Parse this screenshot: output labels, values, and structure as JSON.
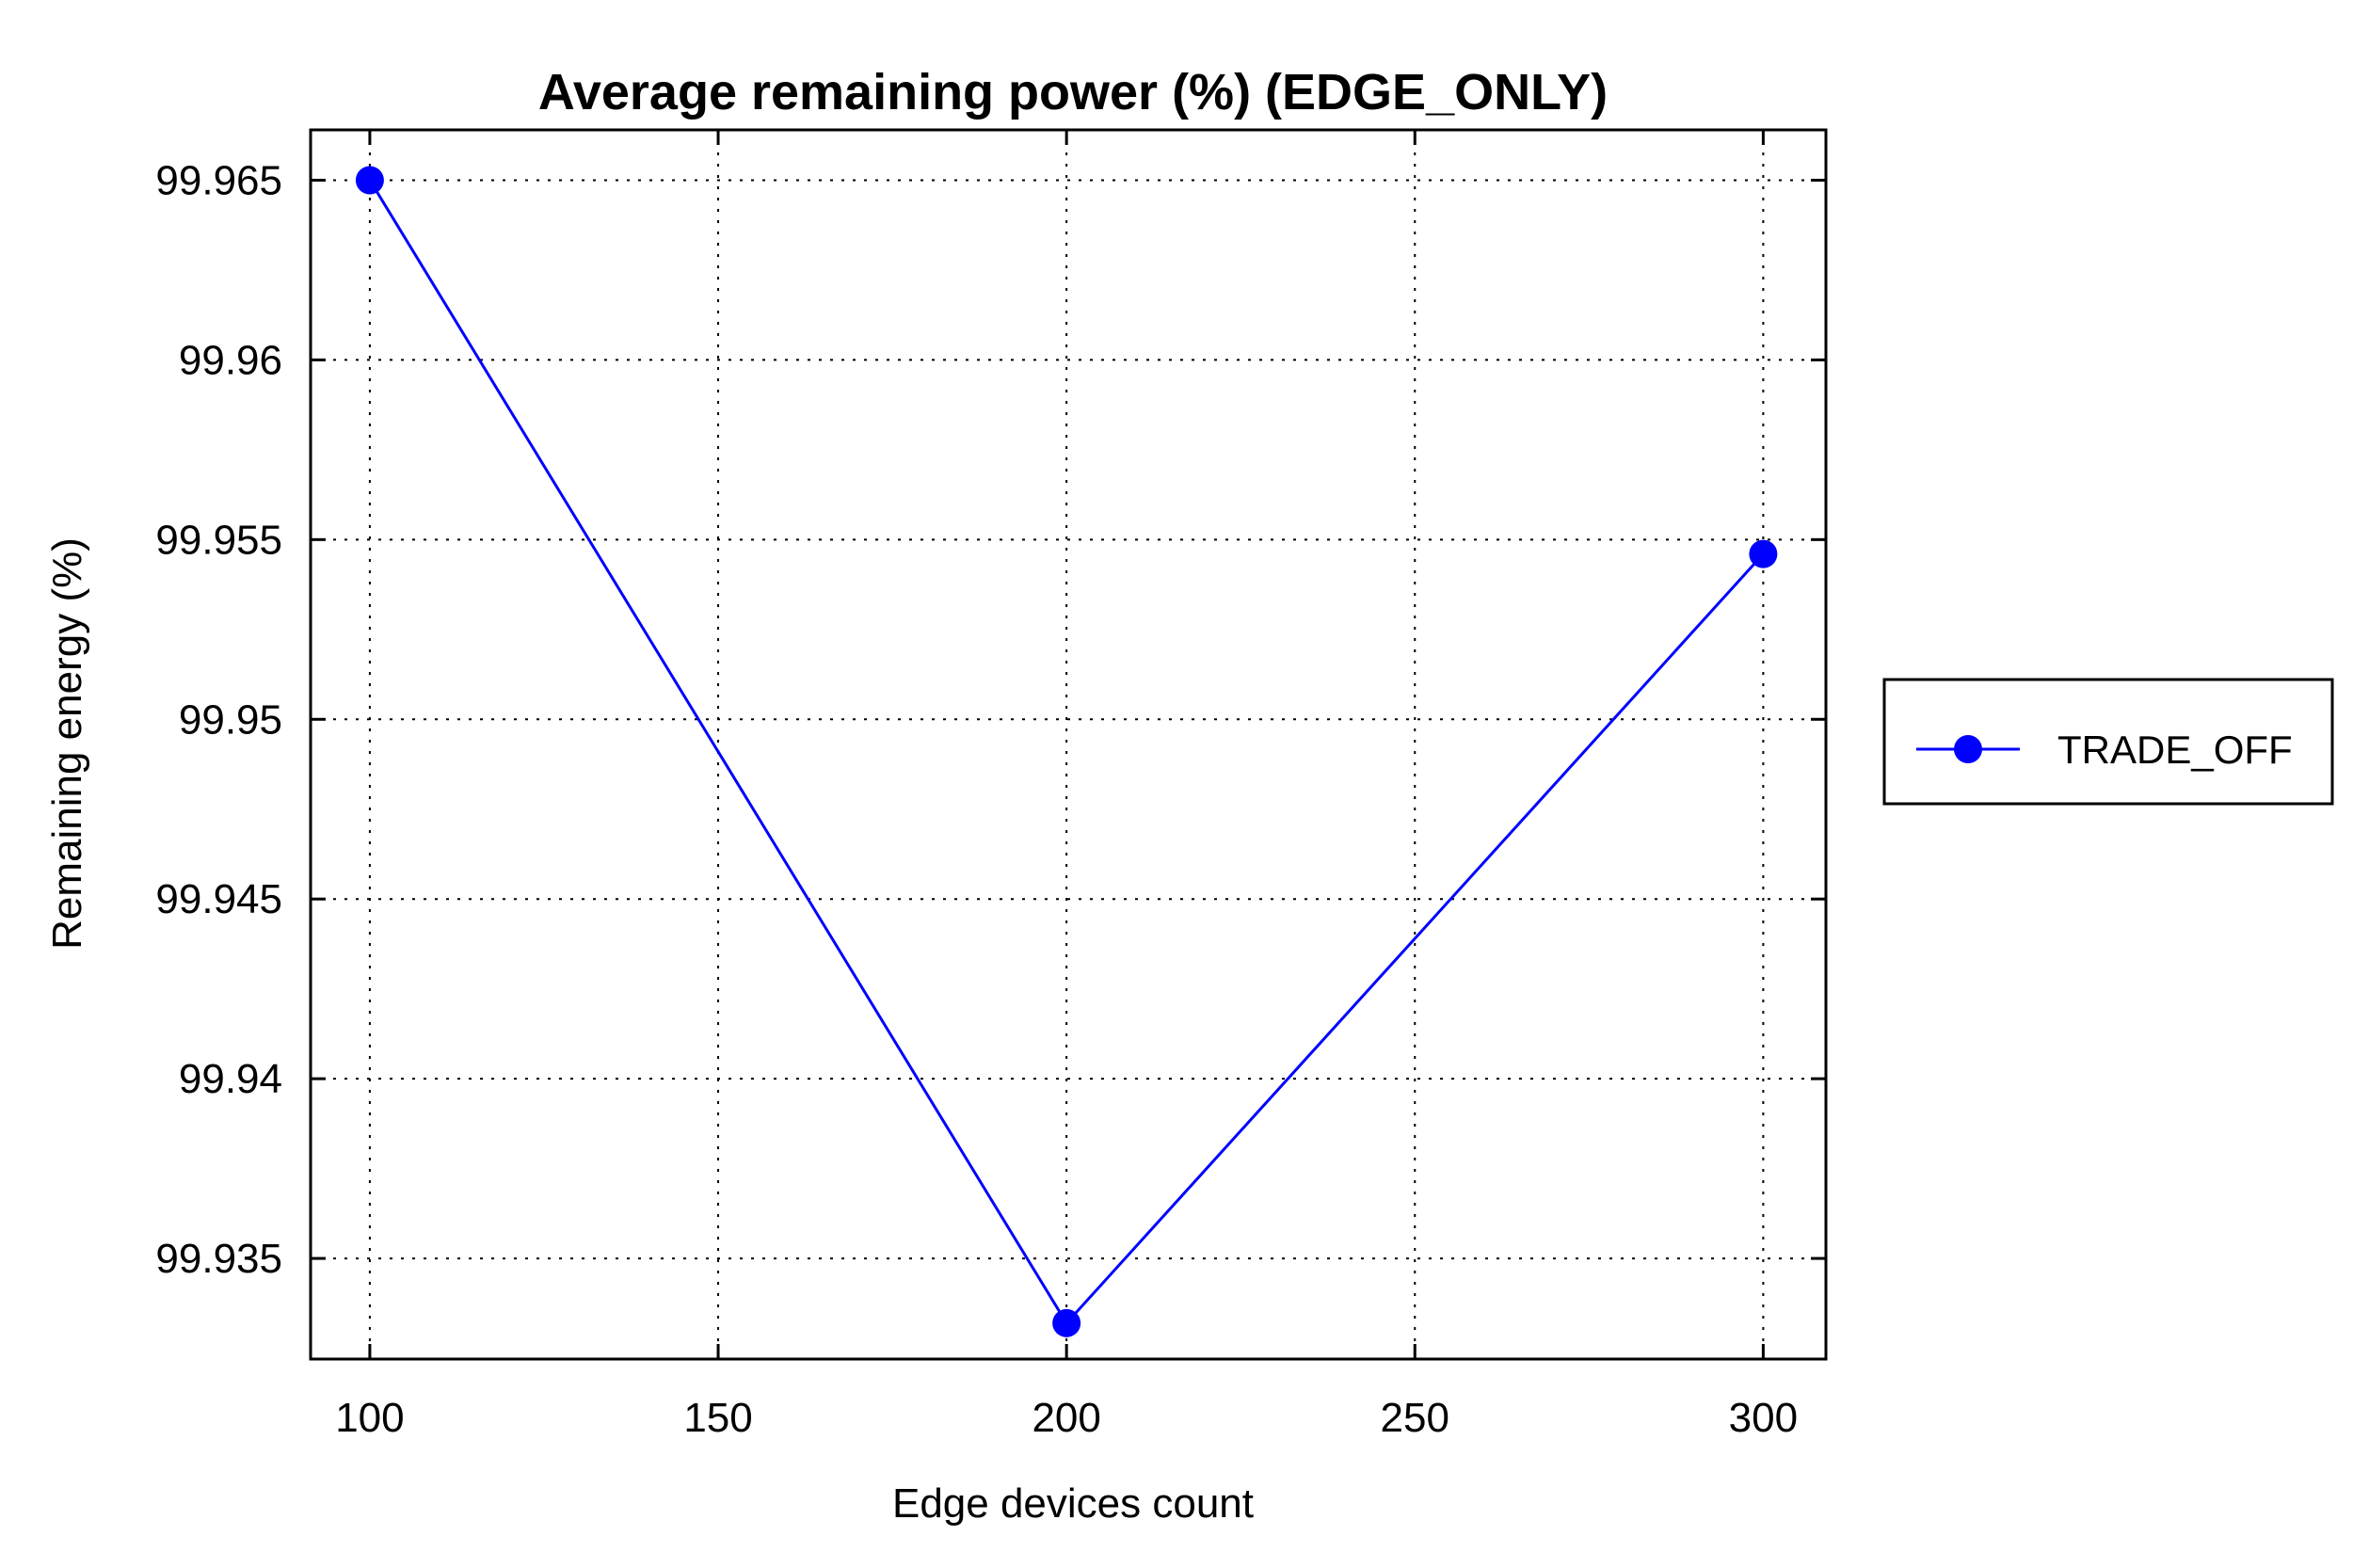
{
  "chart_data": {
    "type": "line",
    "title": "Average remaining power (%) (EDGE_ONLY)",
    "xlabel": "Edge devices count",
    "ylabel": "Remaining energy (%)",
    "x_ticks": [
      "100",
      "150",
      "200",
      "250",
      "300"
    ],
    "y_ticks": [
      "99.935",
      "99.94",
      "99.945",
      "99.95",
      "99.955",
      "99.96",
      "99.965"
    ],
    "xlim": [
      91.5,
      309
    ],
    "ylim": [
      99.9322,
      99.9664
    ],
    "grid": true,
    "grid_style": "dotted",
    "legend_position": "outside-right",
    "series": [
      {
        "name": "TRADE_OFF",
        "color": "#0000ff",
        "marker": "circle",
        "x": [
          100,
          200,
          300
        ],
        "y": [
          99.965,
          99.9332,
          99.9546
        ]
      }
    ]
  }
}
